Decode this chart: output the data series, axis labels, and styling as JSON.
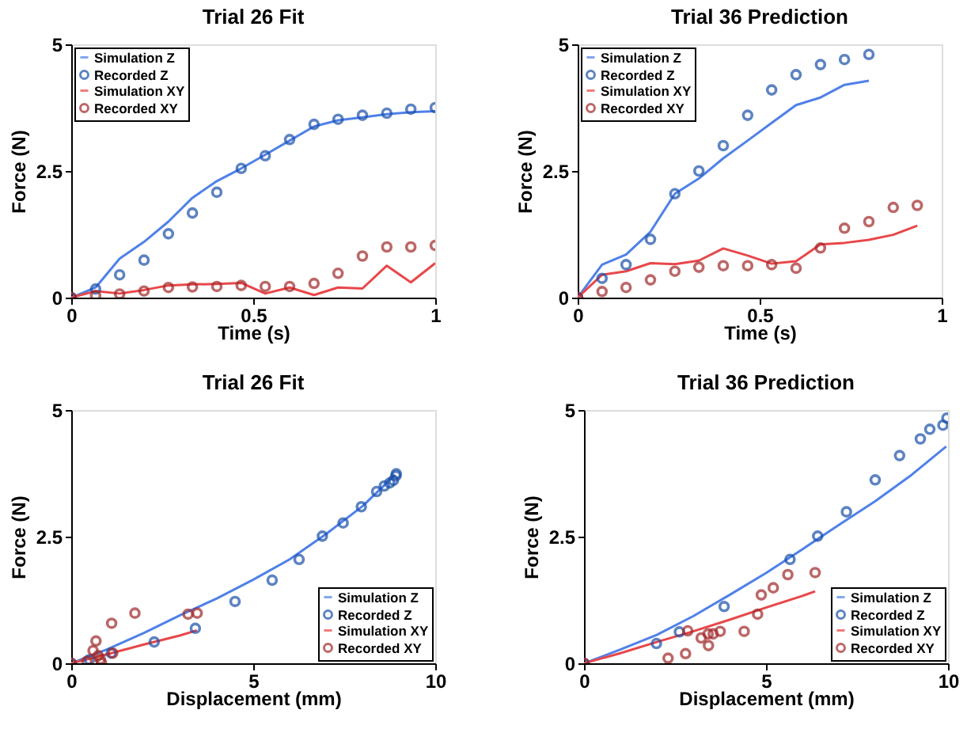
{
  "chart_data": [
    {
      "type": "line",
      "title": "Trial 26 Fit",
      "xlabel": "Time (s)",
      "ylabel": "Force (N)",
      "xlim": [
        0,
        1
      ],
      "ylim": [
        0,
        5
      ],
      "xticks": [
        0,
        0.5,
        1
      ],
      "yticks": [
        0,
        2.5,
        5
      ],
      "grid": false,
      "legend": "top left",
      "line_style": "solid",
      "series": [
        {
          "name": "Simulation Z",
          "type": "line",
          "color": "#4f81e8",
          "x": [
            0,
            0.067,
            0.133,
            0.2,
            0.267,
            0.333,
            0.4,
            0.467,
            0.533,
            0.6,
            0.667,
            0.733,
            0.8,
            0.867,
            0.933,
            1
          ],
          "values": [
            0,
            0.2,
            0.77,
            1.1,
            1.5,
            1.97,
            2.3,
            2.55,
            2.82,
            3.1,
            3.38,
            3.5,
            3.56,
            3.62,
            3.66,
            3.68
          ]
        },
        {
          "name": "Recorded Z",
          "type": "scatter",
          "marker": "circle",
          "color": "#1a4fa8",
          "x": [
            0,
            0.067,
            0.133,
            0.2,
            0.267,
            0.333,
            0.4,
            0.467,
            0.533,
            0.6,
            0.667,
            0.733,
            0.8,
            0.867,
            0.933,
            1
          ],
          "values": [
            0,
            0.17,
            0.45,
            0.74,
            1.26,
            1.67,
            2.08,
            2.55,
            2.8,
            3.12,
            3.42,
            3.52,
            3.6,
            3.64,
            3.72,
            3.75
          ]
        },
        {
          "name": "Simulation XY",
          "type": "line",
          "color": "#e8474a",
          "x": [
            0,
            0.067,
            0.133,
            0.2,
            0.267,
            0.333,
            0.4,
            0.467,
            0.533,
            0.6,
            0.667,
            0.733,
            0.8,
            0.867,
            0.933,
            1
          ],
          "values": [
            0,
            0.13,
            0.08,
            0.15,
            0.24,
            0.26,
            0.27,
            0.29,
            0.08,
            0.2,
            0.05,
            0.2,
            0.18,
            0.63,
            0.3,
            0.68
          ]
        },
        {
          "name": "Recorded XY",
          "type": "scatter",
          "marker": "circle",
          "color": "#a02828",
          "x": [
            0,
            0.067,
            0.133,
            0.2,
            0.267,
            0.333,
            0.4,
            0.467,
            0.533,
            0.6,
            0.667,
            0.733,
            0.8,
            0.867,
            0.933,
            1
          ],
          "values": [
            0,
            0.04,
            0.07,
            0.13,
            0.2,
            0.21,
            0.22,
            0.24,
            0.22,
            0.22,
            0.28,
            0.48,
            0.82,
            1.0,
            1.0,
            1.03
          ]
        }
      ]
    },
    {
      "type": "line",
      "title": "Trial 36 Prediction",
      "xlabel": "Time (s)",
      "ylabel": "Force (N)",
      "xlim": [
        0,
        1
      ],
      "ylim": [
        0,
        5
      ],
      "xticks": [
        0,
        0.5,
        1
      ],
      "yticks": [
        0,
        2.5,
        5
      ],
      "grid": false,
      "legend": "top left",
      "line_style": "solid",
      "series": [
        {
          "name": "Simulation Z",
          "type": "line",
          "color": "#4f81e8",
          "x": [
            0,
            0.067,
            0.133,
            0.2,
            0.267,
            0.333,
            0.4,
            0.467,
            0.533,
            0.6,
            0.667,
            0.733,
            0.8
          ],
          "values": [
            0,
            0.65,
            0.85,
            1.3,
            2.05,
            2.35,
            2.75,
            3.1,
            3.45,
            3.8,
            3.95,
            4.2,
            4.28
          ]
        },
        {
          "name": "Recorded Z",
          "type": "scatter",
          "marker": "circle",
          "color": "#1a4fa8",
          "x": [
            0,
            0.067,
            0.133,
            0.2,
            0.267,
            0.333,
            0.4,
            0.467,
            0.533,
            0.6,
            0.667,
            0.733,
            0.8
          ],
          "values": [
            0,
            0.38,
            0.65,
            1.15,
            2.05,
            2.5,
            3.0,
            3.6,
            4.1,
            4.4,
            4.6,
            4.7,
            4.8
          ]
        },
        {
          "name": "Simulation XY",
          "type": "line",
          "color": "#e8474a",
          "x": [
            0,
            0.067,
            0.133,
            0.2,
            0.267,
            0.333,
            0.4,
            0.467,
            0.533,
            0.6,
            0.667,
            0.733,
            0.8,
            0.867,
            0.933
          ],
          "values": [
            0,
            0.45,
            0.52,
            0.68,
            0.66,
            0.73,
            0.97,
            0.83,
            0.67,
            0.72,
            1.05,
            1.08,
            1.14,
            1.24,
            1.42
          ]
        },
        {
          "name": "Recorded XY",
          "type": "scatter",
          "marker": "circle",
          "color": "#a02828",
          "x": [
            0,
            0.067,
            0.133,
            0.2,
            0.267,
            0.333,
            0.4,
            0.467,
            0.533,
            0.6,
            0.667,
            0.733,
            0.8,
            0.867,
            0.933
          ],
          "values": [
            0,
            0.12,
            0.2,
            0.35,
            0.52,
            0.6,
            0.63,
            0.63,
            0.65,
            0.58,
            0.98,
            1.37,
            1.5,
            1.78,
            1.82
          ]
        }
      ]
    },
    {
      "type": "line",
      "title": "Trial 26 Fit",
      "xlabel": "Displacement (mm)",
      "ylabel": "Force (N)",
      "xlim": [
        0,
        10
      ],
      "ylim": [
        0,
        5
      ],
      "xticks": [
        0,
        5,
        10
      ],
      "yticks": [
        0,
        2.5,
        5
      ],
      "grid": false,
      "legend": "bottom right",
      "line_style": "solid",
      "series": [
        {
          "name": "Simulation Z",
          "type": "line",
          "color": "#4f81e8",
          "x": [
            0,
            1,
            2,
            3,
            4,
            5,
            6,
            7,
            8,
            8.9
          ],
          "values": [
            0,
            0.28,
            0.6,
            0.95,
            1.28,
            1.65,
            2.05,
            2.55,
            3.1,
            3.72
          ]
        },
        {
          "name": "Recorded Z",
          "type": "scatter",
          "marker": "circle",
          "color": "#1a4fa8",
          "x": [
            0,
            0.5,
            1.1,
            2.28,
            3.41,
            4.5,
            5.52,
            6.26,
            6.9,
            7.47,
            7.97,
            8.39,
            8.6,
            8.75,
            8.85,
            8.92,
            8.93
          ],
          "values": [
            0,
            0.07,
            0.2,
            0.42,
            0.69,
            1.22,
            1.64,
            2.05,
            2.51,
            2.77,
            3.09,
            3.39,
            3.5,
            3.56,
            3.61,
            3.7,
            3.74
          ]
        },
        {
          "name": "Simulation XY",
          "type": "line",
          "color": "#e8474a",
          "x": [
            0,
            1,
            2,
            3,
            3.45
          ],
          "values": [
            0,
            0.18,
            0.37,
            0.55,
            0.65
          ]
        },
        {
          "name": "Recorded XY",
          "type": "scatter",
          "marker": "circle",
          "color": "#a02828",
          "x": [
            0,
            0.43,
            0.6,
            0.68,
            0.74,
            0.83,
            0.8,
            1.11,
            1.14,
            1.75,
            3.21,
            3.46
          ],
          "values": [
            0,
            0.04,
            0.25,
            0.44,
            0.15,
            0.01,
            0.08,
            0.79,
            0.2,
            0.99,
            0.97,
            0.99
          ]
        }
      ]
    },
    {
      "type": "line",
      "title": "Trial 36 Prediction",
      "xlabel": "Displacement (mm)",
      "ylabel": "Force (N)",
      "xlim": [
        0,
        10
      ],
      "ylim": [
        0,
        5
      ],
      "xticks": [
        0,
        5,
        10
      ],
      "yticks": [
        0,
        2.5,
        5
      ],
      "grid": false,
      "legend": "bottom right",
      "line_style": "solid",
      "series": [
        {
          "name": "Simulation Z",
          "type": "line",
          "color": "#4f81e8",
          "x": [
            0,
            1,
            2,
            3,
            4,
            5,
            6,
            7,
            8,
            9,
            9.95
          ],
          "values": [
            0,
            0.27,
            0.56,
            0.93,
            1.35,
            1.78,
            2.25,
            2.73,
            3.2,
            3.72,
            4.28
          ]
        },
        {
          "name": "Recorded Z",
          "type": "scatter",
          "marker": "circle",
          "color": "#1a4fa8",
          "x": [
            0,
            1.99,
            2.62,
            3.85,
            5.66,
            6.42,
            7.21,
            8.0,
            8.67,
            9.24,
            9.5,
            9.86,
            9.97
          ],
          "values": [
            0,
            0.39,
            0.62,
            1.12,
            2.05,
            2.51,
            2.99,
            3.62,
            4.1,
            4.43,
            4.62,
            4.7,
            4.84
          ]
        },
        {
          "name": "Simulation XY",
          "type": "line",
          "color": "#e8474a",
          "x": [
            0,
            1,
            2,
            3,
            4,
            5,
            6,
            6.35
          ],
          "values": [
            0,
            0.2,
            0.42,
            0.63,
            0.86,
            1.1,
            1.33,
            1.42
          ]
        },
        {
          "name": "Recorded XY",
          "type": "scatter",
          "marker": "circle",
          "color": "#a02828",
          "x": [
            0,
            2.31,
            2.79,
            2.85,
            3.22,
            3.41,
            3.42,
            3.55,
            3.74,
            4.4,
            4.77,
            4.87,
            5.2,
            5.6,
            6.35
          ],
          "values": [
            0,
            0.1,
            0.19,
            0.64,
            0.5,
            0.58,
            0.35,
            0.58,
            0.63,
            0.63,
            0.97,
            1.35,
            1.49,
            1.75,
            1.79
          ]
        }
      ]
    }
  ]
}
